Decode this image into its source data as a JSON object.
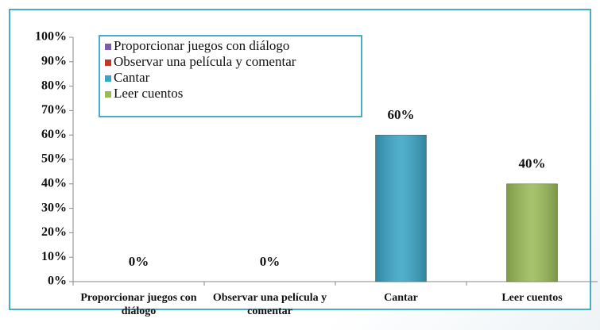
{
  "chart_data": {
    "type": "bar",
    "categories": [
      "Proporcionar juegos con diálogo",
      "Observar una película y comentar",
      "Cantar",
      "Leer cuentos"
    ],
    "values": [
      0,
      0,
      60,
      40
    ],
    "value_labels": [
      "0%",
      "0%",
      "60%",
      "40%"
    ],
    "colors": [
      "#7b5ea7",
      "#c0392b",
      "#3aa5c6",
      "#9bbb59"
    ],
    "ylim": [
      0,
      100
    ],
    "yticks": [
      {
        "value": 0,
        "label": "0%"
      },
      {
        "value": 10,
        "label": "10%"
      },
      {
        "value": 20,
        "label": "20%"
      },
      {
        "value": 30,
        "label": "30%"
      },
      {
        "value": 40,
        "label": "40%"
      },
      {
        "value": 50,
        "label": "50%"
      },
      {
        "value": 60,
        "label": "60%"
      },
      {
        "value": 70,
        "label": "70%"
      },
      {
        "value": 80,
        "label": "80%"
      },
      {
        "value": 90,
        "label": "90%"
      },
      {
        "value": 100,
        "label": "100%"
      }
    ],
    "grid": false,
    "legend": "top-left"
  }
}
